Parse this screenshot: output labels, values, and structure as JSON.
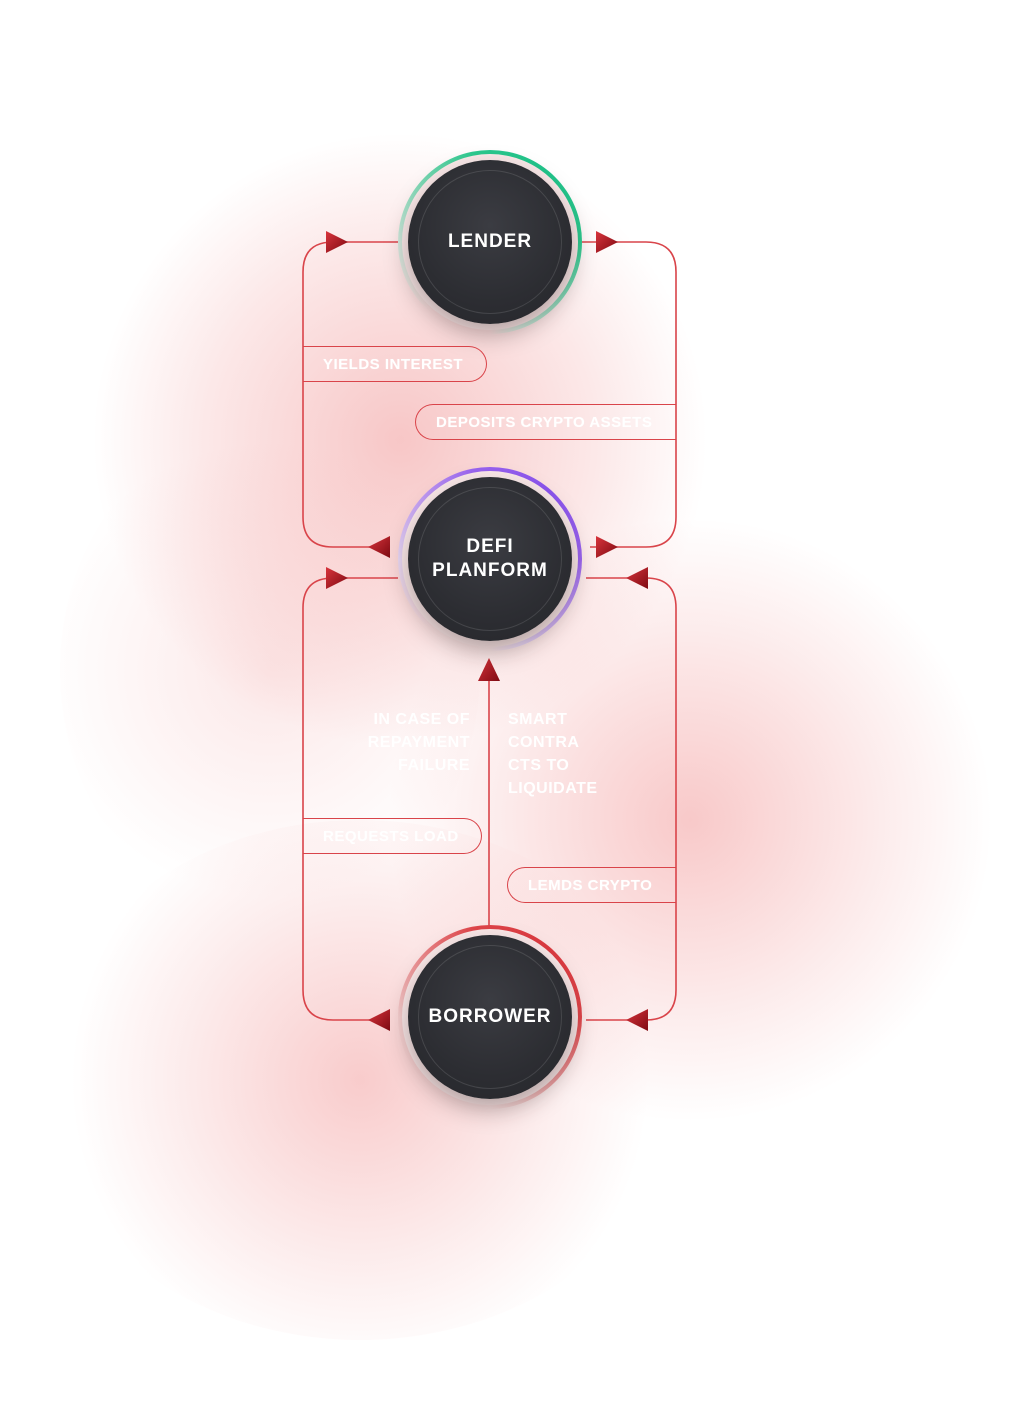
{
  "nodes": {
    "lender": "LENDER",
    "defi_line1": "DEFI",
    "defi_line2": "PLANFORM",
    "borrower": "BORROWER"
  },
  "labels": {
    "yields_interest": "YIELDS INTEREST",
    "deposits_crypto": "DEPOSITS CRYPTO ASSETS",
    "requests_loan": "REQUESTS LOAD",
    "lends_crypto": "LEMDS CRYPTO"
  },
  "notes": {
    "failure": [
      "IN CASE OF",
      "REPAYMENT",
      "FAILURE"
    ],
    "smart": [
      "SMART",
      "CONTRA",
      "CTS TO",
      "LIQUIDATE"
    ]
  },
  "colors": {
    "line": "#d9444a",
    "arrow": "#a8141c",
    "lender_ring": "#1fc48a",
    "defi_ring": "#8a54ee",
    "borrower_ring": "#dc3a40",
    "node_fill": "#2c2d32"
  }
}
